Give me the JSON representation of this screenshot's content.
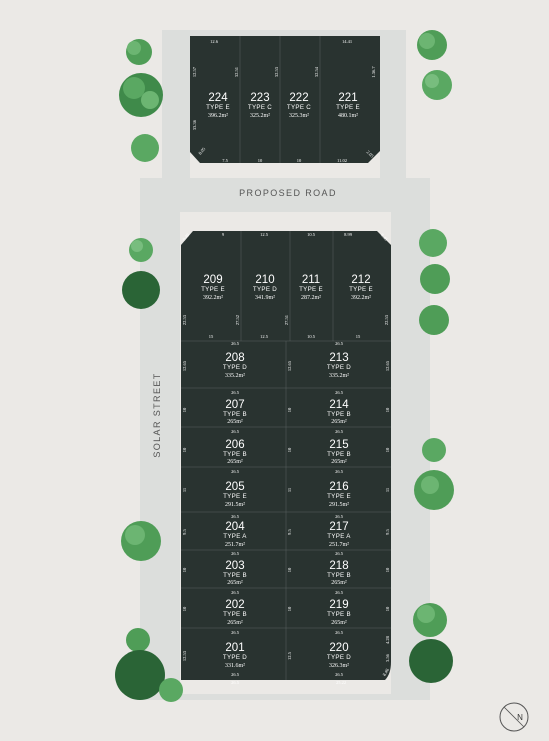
{
  "streets": {
    "proposed_road": "PROPOSED ROAD",
    "solar_street": "SOLAR STREET"
  },
  "north_label": "N",
  "top_lots": [
    {
      "number": "224",
      "type": "TYPE E",
      "area": "396.2m²"
    },
    {
      "number": "223",
      "type": "TYPE C",
      "area": "325.2m²"
    },
    {
      "number": "222",
      "type": "TYPE C",
      "area": "325.3m²"
    },
    {
      "number": "221",
      "type": "TYPE E",
      "area": "480.1m²"
    }
  ],
  "row_lots": [
    {
      "number": "209",
      "type": "TYPE E",
      "area": "392.2m²"
    },
    {
      "number": "210",
      "type": "TYPE D",
      "area": "341.9m²"
    },
    {
      "number": "211",
      "type": "TYPE E",
      "area": "287.2m²"
    },
    {
      "number": "212",
      "type": "TYPE E",
      "area": "392.2m²"
    }
  ],
  "left_lots": [
    {
      "number": "208",
      "type": "TYPE D",
      "area": "335.2m²"
    },
    {
      "number": "207",
      "type": "TYPE B",
      "area": "265m²"
    },
    {
      "number": "206",
      "type": "TYPE B",
      "area": "265m²"
    },
    {
      "number": "205",
      "type": "TYPE E",
      "area": "291.5m²"
    },
    {
      "number": "204",
      "type": "TYPE A",
      "area": "251.7m²"
    },
    {
      "number": "203",
      "type": "TYPE B",
      "area": "265m²"
    },
    {
      "number": "202",
      "type": "TYPE B",
      "area": "265m²"
    },
    {
      "number": "201",
      "type": "TYPE D",
      "area": "331.6m²"
    }
  ],
  "right_lots": [
    {
      "number": "213",
      "type": "TYPE D",
      "area": "335.2m²"
    },
    {
      "number": "214",
      "type": "TYPE B",
      "area": "265m²"
    },
    {
      "number": "215",
      "type": "TYPE B",
      "area": "265m²"
    },
    {
      "number": "216",
      "type": "TYPE E",
      "area": "291.5m²"
    },
    {
      "number": "217",
      "type": "TYPE A",
      "area": "251.7m²"
    },
    {
      "number": "218",
      "type": "TYPE B",
      "area": "265m²"
    },
    {
      "number": "219",
      "type": "TYPE B",
      "area": "265m²"
    },
    {
      "number": "220",
      "type": "TYPE D",
      "area": "326.3m²"
    }
  ],
  "dimensions": {
    "top_front": [
      "12.6",
      "14.41"
    ],
    "top_rear": [
      "7.5",
      "10",
      "10",
      "11.02"
    ],
    "top_sides": [
      "12.57",
      "32.51",
      "32.53",
      "32.54",
      "1.36.7",
      "33.36"
    ],
    "top_corners": [
      "8.05",
      "2.05"
    ],
    "row_front": [
      "9",
      "12.5",
      "10.5",
      "8.99"
    ],
    "row_rear": [
      "15",
      "12.5",
      "10.5",
      "15"
    ],
    "row_sides": [
      "22.53",
      "27.52",
      "27.51",
      "22.53"
    ],
    "row_corners": [
      "8.49",
      "8.49"
    ],
    "block_widths": [
      "26.5",
      "26.5",
      "26.5",
      "26.5",
      "26.5",
      "26.5",
      "26.5",
      "26.5",
      "26.5",
      "26.5",
      "26.5",
      "26.5",
      "26.5",
      "26.5",
      "26.5",
      "26.5",
      "26.5",
      "26.5",
      "26.5",
      "25.22"
    ],
    "left_depths": [
      "12.65",
      "10",
      "10",
      "11",
      "9.5",
      "10",
      "10",
      "12.53"
    ],
    "right_depths": [
      "12.65",
      "10",
      "10",
      "11",
      "9.5",
      "10",
      "10",
      "12.5"
    ],
    "bottom_right_extra": [
      "4.28",
      "3.56",
      "8.46"
    ]
  },
  "colors": {
    "lot": "#293330",
    "road": "#dcdedc",
    "ground": "#ebe9e6",
    "tree": "#4d9a55",
    "tree_dark": "#2a6436"
  }
}
